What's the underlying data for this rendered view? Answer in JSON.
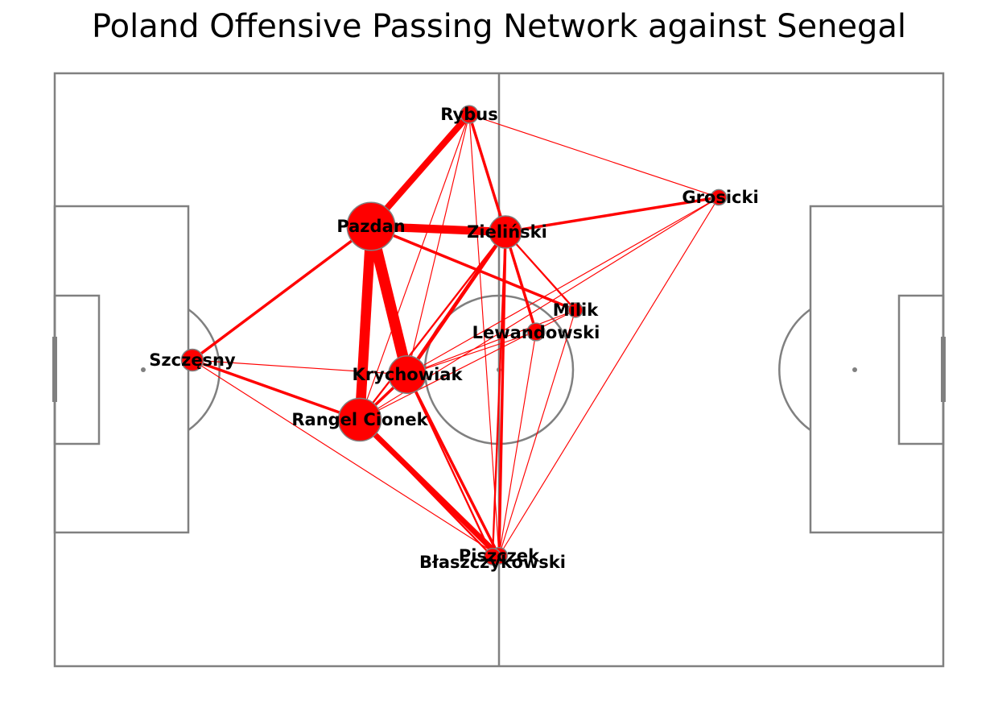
{
  "title": "Poland Offensive Passing Network against Senegal",
  "colors": {
    "line": "#ff0000",
    "node_fill": "#ff0000",
    "node_stroke": "#808080",
    "pitch_line": "#808080",
    "background": "#ffffff"
  },
  "players": [
    {
      "id": "szczesny",
      "name": "Szczęsny",
      "size": 1.0
    },
    {
      "id": "rangel_cionek",
      "name": "Rangel Cionek",
      "size": 3.0
    },
    {
      "id": "pazdan",
      "name": "Pazdan",
      "size": 3.5
    },
    {
      "id": "krychowiak",
      "name": "Krychowiak",
      "size": 2.5
    },
    {
      "id": "rybus",
      "name": "Rybus",
      "size": 0.6
    },
    {
      "id": "zielinski",
      "name": "Zieliński",
      "size": 2.0
    },
    {
      "id": "grosicki",
      "name": "Grosicki",
      "size": 0.4
    },
    {
      "id": "milik",
      "name": "Milik",
      "size": 0.3
    },
    {
      "id": "lewandowski",
      "name": "Lewandowski",
      "size": 0.6
    },
    {
      "id": "piszczek",
      "name": "Piszczek",
      "size": 0.5
    },
    {
      "id": "blaszczykowski",
      "name": "Błaszczykowski",
      "size": 0.5
    }
  ],
  "passes": [
    {
      "from": "pazdan",
      "to": "krychowiak",
      "weight": 12
    },
    {
      "from": "pazdan",
      "to": "rangel_cionek",
      "weight": 11
    },
    {
      "from": "pazdan",
      "to": "zielinski",
      "weight": 9
    },
    {
      "from": "pazdan",
      "to": "rybus",
      "weight": 7
    },
    {
      "from": "rangel_cionek",
      "to": "piszczek",
      "weight": 6
    },
    {
      "from": "krychowiak",
      "to": "zielinski",
      "weight": 4
    },
    {
      "from": "szczesny",
      "to": "pazdan",
      "weight": 3
    },
    {
      "from": "szczesny",
      "to": "rangel_cionek",
      "weight": 3
    },
    {
      "from": "zielinski",
      "to": "grosicki",
      "weight": 3
    },
    {
      "from": "rybus",
      "to": "zielinski",
      "weight": 3
    },
    {
      "from": "zielinski",
      "to": "lewandowski",
      "weight": 3
    },
    {
      "from": "pazdan",
      "to": "milik",
      "weight": 3
    },
    {
      "from": "zielinski",
      "to": "piszczek",
      "weight": 3
    },
    {
      "from": "krychowiak",
      "to": "piszczek",
      "weight": 3
    },
    {
      "from": "rangel_cionek",
      "to": "krychowiak",
      "weight": 3
    },
    {
      "from": "zielinski",
      "to": "milik",
      "weight": 2
    },
    {
      "from": "rangel_cionek",
      "to": "zielinski",
      "weight": 2
    },
    {
      "from": "rangel_cionek",
      "to": "blaszczykowski",
      "weight": 2
    },
    {
      "from": "krychowiak",
      "to": "blaszczykowski",
      "weight": 2
    },
    {
      "from": "blaszczykowski",
      "to": "zielinski",
      "weight": 2
    },
    {
      "from": "rybus",
      "to": "grosicki",
      "weight": 1
    },
    {
      "from": "rybus",
      "to": "krychowiak",
      "weight": 1
    },
    {
      "from": "rybus",
      "to": "rangel_cionek",
      "weight": 1
    },
    {
      "from": "rybus",
      "to": "piszczek",
      "weight": 1
    },
    {
      "from": "grosicki",
      "to": "krychowiak",
      "weight": 1
    },
    {
      "from": "grosicki",
      "to": "rangel_cionek",
      "weight": 1
    },
    {
      "from": "grosicki",
      "to": "piszczek",
      "weight": 1
    },
    {
      "from": "milik",
      "to": "krychowiak",
      "weight": 1
    },
    {
      "from": "milik",
      "to": "piszczek",
      "weight": 1
    },
    {
      "from": "milik",
      "to": "rangel_cionek",
      "weight": 1
    },
    {
      "from": "lewandowski",
      "to": "krychowiak",
      "weight": 1
    },
    {
      "from": "lewandowski",
      "to": "piszczek",
      "weight": 1
    },
    {
      "from": "szczesny",
      "to": "piszczek",
      "weight": 1
    },
    {
      "from": "szczesny",
      "to": "krychowiak",
      "weight": 1
    }
  ]
}
